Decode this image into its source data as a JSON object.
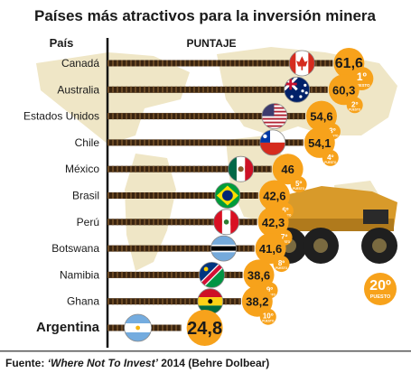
{
  "title": "Países más atractivos para la inversión minera",
  "header": {
    "country": "País",
    "score": "PUNTAJE"
  },
  "rank_word": "PUESTO",
  "source": {
    "prefix": "Fuente: ",
    "title": "‘Where Not To Invest’",
    "suffix": " 2014 (Behre Dolbear)"
  },
  "chart_data": {
    "type": "bar",
    "title": "Países más atractivos para la inversión minera",
    "xlabel": "País",
    "ylabel": "PUNTAJE",
    "categories": [
      "Canadá",
      "Australia",
      "Estados Unidos",
      "Chile",
      "México",
      "Brasil",
      "Perú",
      "Botswana",
      "Namibia",
      "Ghana",
      "Argentina"
    ],
    "values": [
      61.6,
      60.3,
      54.6,
      54.1,
      46,
      42.6,
      42.3,
      41.6,
      38.6,
      38.2,
      24.8
    ],
    "value_labels": [
      "61,6",
      "60,3",
      "54,6",
      "54,1",
      "46",
      "42,6",
      "42,3",
      "41,6",
      "38,6",
      "38,2",
      "24,8"
    ],
    "ranks": [
      "1º",
      "2º",
      "3º",
      "4º",
      "5º",
      "6º",
      "7º",
      "8º",
      "9º",
      "10º",
      "20º"
    ],
    "flags": [
      "canada-flag",
      "australia-flag",
      "usa-flag",
      "chile-flag",
      "mexico-flag",
      "brazil-flag",
      "peru-flag",
      "botswana-flag",
      "namibia-flag",
      "ghana-flag",
      "argentina-flag"
    ]
  },
  "colors": {
    "title": "#1a1a1a",
    "bar": "#3a2410",
    "badge": "#f7a21b",
    "rank_text": "#ffffff",
    "map": "#efe6c6",
    "axis": "#111111"
  }
}
